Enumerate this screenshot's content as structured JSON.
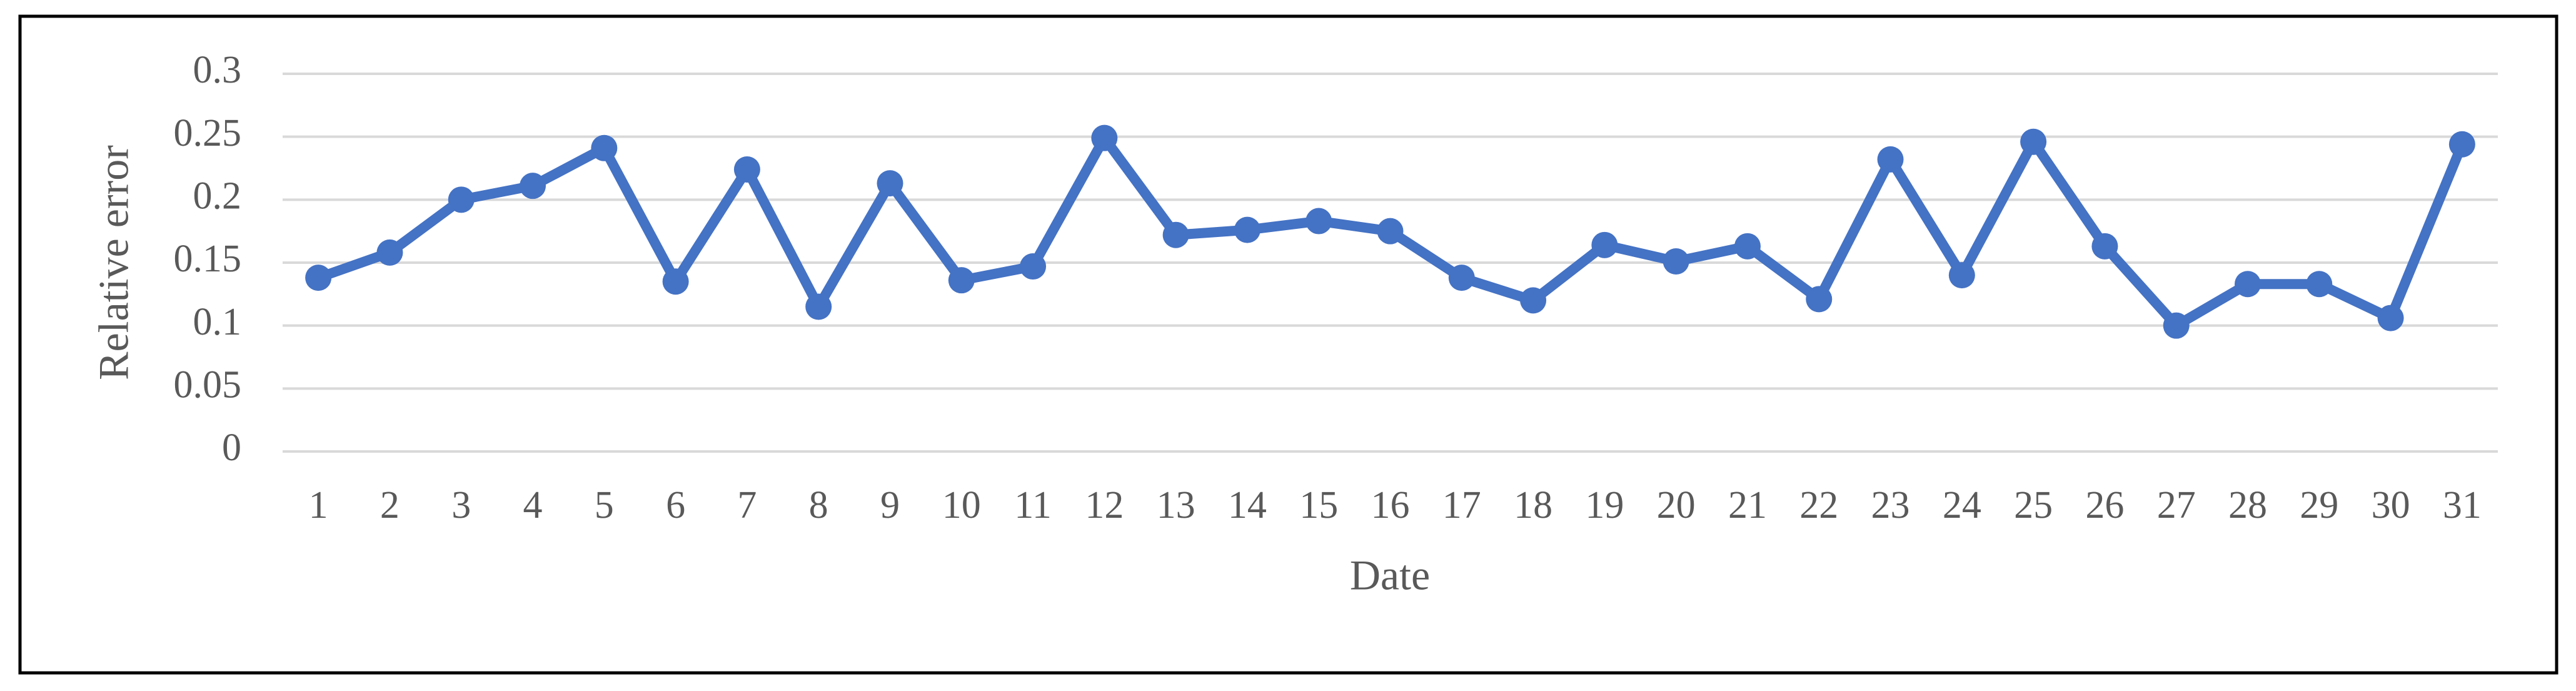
{
  "chart_data": {
    "type": "line",
    "x_label": "Date",
    "y_label": "Relative error",
    "categories": [
      1,
      2,
      3,
      4,
      5,
      6,
      7,
      8,
      9,
      10,
      11,
      12,
      13,
      14,
      15,
      16,
      17,
      18,
      19,
      20,
      21,
      22,
      23,
      24,
      25,
      26,
      27,
      28,
      29,
      30,
      31
    ],
    "series": [
      {
        "color": "#4472c4",
        "values": [
          0.138,
          0.158,
          0.2,
          0.211,
          0.241,
          0.135,
          0.224,
          0.115,
          0.213,
          0.136,
          0.147,
          0.249,
          0.172,
          0.176,
          0.183,
          0.175,
          0.138,
          0.12,
          0.164,
          0.151,
          0.163,
          0.121,
          0.232,
          0.14,
          0.246,
          0.163,
          0.1,
          0.133,
          0.133,
          0.106,
          0.244
        ]
      }
    ],
    "ylim": [
      0,
      0.3
    ],
    "yticks": [
      0,
      0.05,
      0.1,
      0.15,
      0.2,
      0.25,
      0.3
    ],
    "grid": true
  }
}
